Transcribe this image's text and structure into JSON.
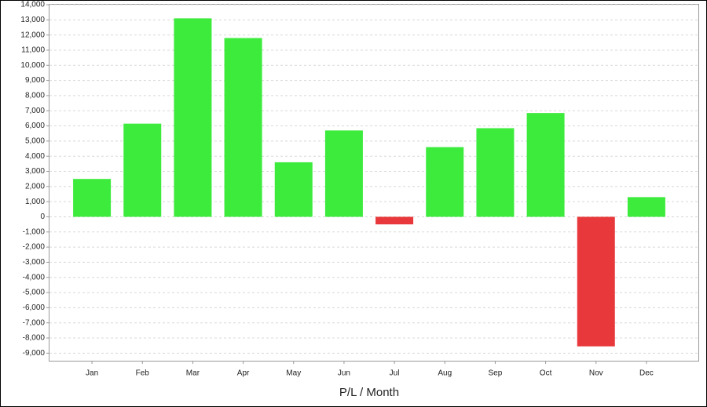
{
  "chart_data": {
    "type": "bar",
    "x_label": "P/L / Month",
    "categories": [
      "Jan",
      "Feb",
      "Mar",
      "Apr",
      "May",
      "Jun",
      "Jul",
      "Aug",
      "Sep",
      "Oct",
      "Nov",
      "Dec"
    ],
    "values": [
      2500,
      6150,
      13100,
      11800,
      3600,
      5700,
      -500,
      4600,
      5850,
      6850,
      -8550,
      1300
    ],
    "color": "#3deb3d",
    "negative_color": "#e8383b",
    "ylim": [
      -9500,
      14000
    ],
    "yticks": [
      {
        "value": -9000,
        "label": "-9,000"
      },
      {
        "value": -8000,
        "label": "-8,000"
      },
      {
        "value": -7000,
        "label": "-7,000"
      },
      {
        "value": -6000,
        "label": "-6,000"
      },
      {
        "value": -5000,
        "label": "-5,000"
      },
      {
        "value": -4000,
        "label": "-4,000"
      },
      {
        "value": -3000,
        "label": "-3,000"
      },
      {
        "value": -2000,
        "label": "-2,000"
      },
      {
        "value": -1000,
        "label": "-1,000"
      },
      0,
      {
        "value": 1000,
        "label": "1,000"
      },
      {
        "value": 2000,
        "label": "2,000"
      },
      {
        "value": 3000,
        "label": "3,000"
      },
      {
        "value": 4000,
        "label": "4,000"
      },
      {
        "value": 5000,
        "label": "5,000"
      },
      {
        "value": 6000,
        "label": "6,000"
      },
      {
        "value": 7000,
        "label": "7,000"
      },
      {
        "value": 8000,
        "label": "8,000"
      },
      {
        "value": 9000,
        "label": "9,000"
      },
      {
        "value": 10000,
        "label": "10,000"
      },
      {
        "value": 11000,
        "label": "11,000"
      },
      {
        "value": 12000,
        "label": "12,000"
      },
      {
        "value": 13000,
        "label": "13,000"
      },
      {
        "value": 14000,
        "label": "14,000"
      }
    ],
    "grid": true
  }
}
